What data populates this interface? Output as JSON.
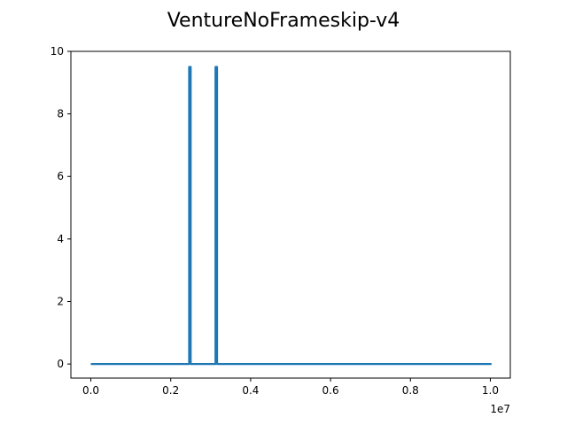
{
  "chart_data": {
    "type": "line",
    "title": "VentureNoFrameskip-v4",
    "xlabel": "",
    "ylabel": "",
    "x_offset_label": "1e7",
    "xlim": [
      -500000,
      10500000
    ],
    "ylim": [
      -0.45,
      10
    ],
    "x_ticks": [
      0,
      2000000,
      4000000,
      6000000,
      8000000,
      10000000
    ],
    "x_tick_labels": [
      "0.0",
      "0.2",
      "0.4",
      "0.6",
      "0.8",
      "1.0"
    ],
    "y_ticks": [
      0,
      2,
      4,
      6,
      8,
      10
    ],
    "y_tick_labels": [
      "0",
      "2",
      "4",
      "6",
      "8",
      "10"
    ],
    "grid": false,
    "series": [
      {
        "color": "#1f77b4",
        "x": [
          0,
          2460000,
          2460000,
          2500000,
          2500000,
          3120000,
          3120000,
          3160000,
          3160000,
          10030000
        ],
        "y": [
          0,
          0,
          9.5,
          9.5,
          0,
          0,
          9.5,
          9.5,
          0,
          0
        ]
      }
    ]
  }
}
